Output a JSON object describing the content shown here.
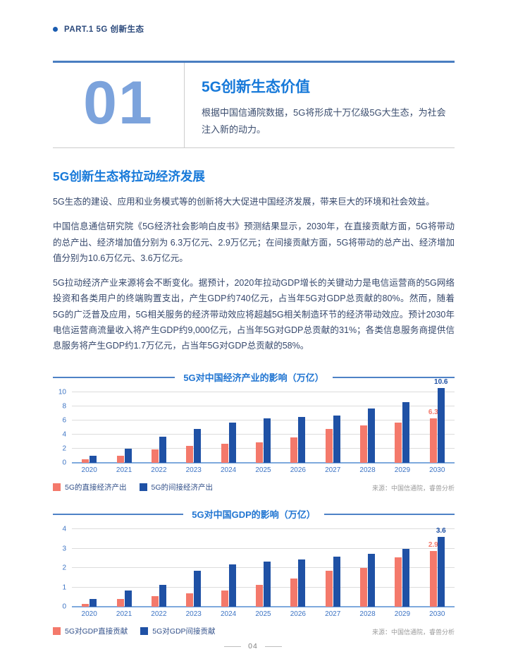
{
  "header": {
    "label": "PART.1 5G 创新生态"
  },
  "hero": {
    "number": "01",
    "title": "5G创新生态价值",
    "subtitle": "根据中国信通院数据，5G将形成十万亿级5G大生态，为社会注入新的动力。"
  },
  "section": {
    "heading": "5G创新生态将拉动经济发展",
    "paragraphs": [
      "5G生态的建设、应用和业务模式等的创新将大大促进中国经济发展，带来巨大的环境和社会效益。",
      "中国信息通信研究院《5G经济社会影响白皮书》预测结果显示，2030年，在直接贡献方面，5G将带动的总产出、经济增加值分别为 6.3万亿元、2.9万亿元；在间接贡献方面，5G将带动的总产出、经济增加值分别为10.6万亿元、3.6万亿元。",
      "5G拉动经济产业来源将会不断变化。据预计，2020年拉动GDP增长的关键动力是电信运营商的5G网络投资和各类用户的终端购置支出，产生GDP约740亿元，占当年5G对GDP总贡献的80%。然而，随着5G的广泛普及应用，5G相关服务的经济带动效应将超越5G相关制造环节的经济带动效应。预计2030年电信运营商流量收入将产生GDP约9,000亿元，占当年5G对GDP总贡献的31%；各类信息服务商提供信息服务将产生GDP约1.7万亿元，占当年5G对GDP总贡献的58%。"
    ]
  },
  "chart_data": [
    {
      "type": "bar",
      "title": "5G对中国经济产业的影响（万亿）",
      "categories": [
        "2020",
        "2021",
        "2022",
        "2023",
        "2024",
        "2025",
        "2026",
        "2027",
        "2028",
        "2029",
        "2030"
      ],
      "series": [
        {
          "name": "5G的直接经济产出",
          "color": "#f4796b",
          "values": [
            0.5,
            1.0,
            1.9,
            2.4,
            2.7,
            2.9,
            3.6,
            4.8,
            5.3,
            5.7,
            6.3
          ]
        },
        {
          "name": "5G的间接经济产出",
          "color": "#1f51a5",
          "values": [
            1.0,
            2.0,
            3.7,
            4.8,
            5.7,
            6.3,
            6.5,
            6.7,
            7.7,
            8.6,
            10.6
          ]
        }
      ],
      "ylim": [
        0,
        10
      ],
      "ytick_step": 2,
      "grid": true,
      "legend_position": "bottom-left",
      "value_labels": [
        {
          "series": 0,
          "index": 10,
          "text": "6.3"
        },
        {
          "series": 1,
          "index": 10,
          "text": "10.6"
        }
      ],
      "source": "来源：中国信通院，睿兽分析"
    },
    {
      "type": "bar",
      "title": "5G对中国GDP的影响（万亿）",
      "categories": [
        "2020",
        "2021",
        "2022",
        "2023",
        "2024",
        "2025",
        "2026",
        "2027",
        "2028",
        "2029",
        "2030"
      ],
      "series": [
        {
          "name": "5G对GDP直接贡献",
          "color": "#f4796b",
          "values": [
            0.15,
            0.4,
            0.55,
            0.7,
            0.85,
            1.15,
            1.45,
            1.85,
            2.0,
            2.55,
            2.9
          ]
        },
        {
          "name": "5G对GDP间接贡献",
          "color": "#1f51a5",
          "values": [
            0.4,
            0.85,
            1.15,
            1.85,
            2.2,
            2.35,
            2.45,
            2.6,
            2.75,
            3.0,
            3.6
          ]
        }
      ],
      "ylim": [
        0,
        4
      ],
      "ytick_step": 1,
      "grid": true,
      "legend_position": "bottom-left",
      "value_labels": [
        {
          "series": 0,
          "index": 10,
          "text": "2.9"
        },
        {
          "series": 1,
          "index": 10,
          "text": "3.6"
        }
      ],
      "source": "来源：中国信通院，睿兽分析"
    }
  ],
  "footer": {
    "page_number": "04"
  },
  "colors": {
    "accent_blue": "#1779d9",
    "bar_orange": "#f4796b",
    "bar_blue": "#1f51a5",
    "light_number_blue": "#7ca3dc",
    "axis_blue": "#3d74c4"
  }
}
